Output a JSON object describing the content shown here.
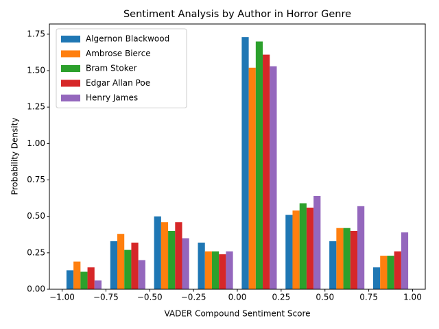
{
  "chart_data": {
    "type": "histogram",
    "title": "Sentiment Analysis by Author in Horror Genre",
    "xlabel": "VADER Compound Sentiment Score",
    "ylabel": "Probability Density",
    "bins": [
      -1.0,
      -0.75,
      -0.5,
      -0.25,
      0.0,
      0.25,
      0.5,
      0.75,
      1.0
    ],
    "series": [
      {
        "name": "Algernon Blackwood",
        "color": "#1f77b4",
        "values": [
          0.13,
          0.33,
          0.5,
          0.32,
          1.73,
          0.51,
          0.33,
          0.15
        ]
      },
      {
        "name": "Ambrose Bierce",
        "color": "#ff7f0e",
        "values": [
          0.19,
          0.38,
          0.46,
          0.26,
          1.52,
          0.54,
          0.42,
          0.23
        ]
      },
      {
        "name": "Bram Stoker",
        "color": "#2ca02c",
        "values": [
          0.12,
          0.27,
          0.4,
          0.26,
          1.7,
          0.59,
          0.42,
          0.23
        ]
      },
      {
        "name": "Edgar Allan Poe",
        "color": "#d62728",
        "values": [
          0.15,
          0.32,
          0.46,
          0.24,
          1.61,
          0.56,
          0.4,
          0.26
        ]
      },
      {
        "name": "Henry James",
        "color": "#9467bd",
        "values": [
          0.06,
          0.2,
          0.35,
          0.26,
          1.53,
          0.64,
          0.57,
          0.39
        ]
      }
    ],
    "xlim": [
      -1.0725,
      1.0725
    ],
    "xticks": [
      {
        "value": -1.0,
        "label": "−1.00"
      },
      {
        "value": -0.75,
        "label": "−0.75"
      },
      {
        "value": -0.5,
        "label": "−0.50"
      },
      {
        "value": -0.25,
        "label": "−0.25"
      },
      {
        "value": 0,
        "label": "0.00"
      },
      0.25,
      {
        "value": 0.5,
        "label": "0.50"
      },
      0.75,
      {
        "value": 1.0,
        "label": "1.00"
      }
    ],
    "ylim": [
      0,
      1.82
    ],
    "yticks": [
      {
        "value": 0,
        "label": "0.00"
      },
      0.25,
      {
        "value": 0.5,
        "label": "0.50"
      },
      0.75,
      {
        "value": 1.0,
        "label": "1.00"
      },
      1.25,
      {
        "value": 1.5,
        "label": "1.50"
      },
      1.75
    ],
    "legend": "upper left"
  }
}
